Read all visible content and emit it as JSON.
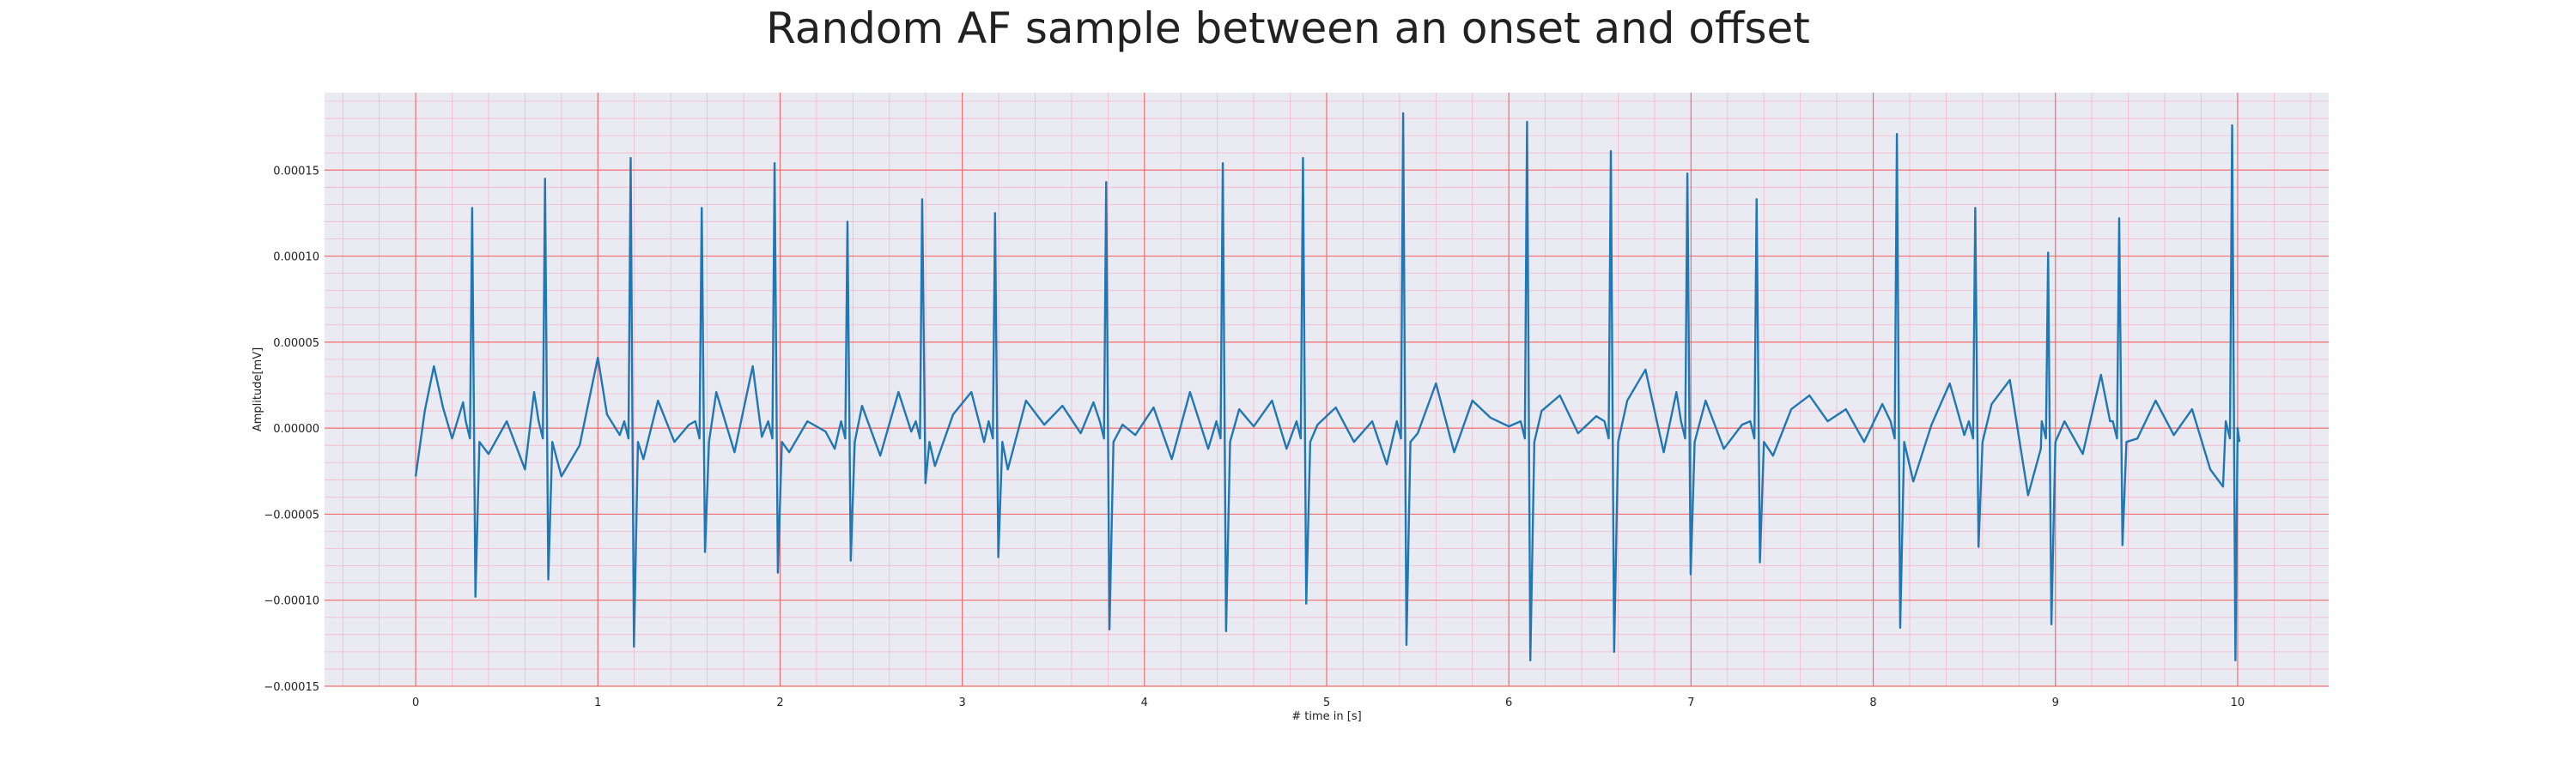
{
  "chart_data": {
    "type": "line",
    "title": "Random AF sample between an onset and offset",
    "xlabel": "# time in [s]",
    "ylabel": "Amplitude[mV]",
    "xlim": [
      -0.5,
      10.5
    ],
    "ylim": [
      -0.00015,
      0.000195
    ],
    "xticks": [
      0,
      1,
      2,
      3,
      4,
      5,
      6,
      7,
      8,
      9,
      10
    ],
    "xtick_labels": [
      "0",
      "1",
      "2",
      "3",
      "4",
      "5",
      "6",
      "7",
      "8",
      "9",
      "10"
    ],
    "yticks": [
      -0.00015,
      -0.0001,
      -5e-05,
      0,
      5e-05,
      0.0001,
      0.00015
    ],
    "ytick_labels": [
      "−0.00015",
      "−0.00010",
      "−0.00005",
      "0.00000",
      "0.00005",
      "0.00010",
      "0.00015"
    ],
    "grid": true,
    "minor_grid": true,
    "background_color": "#eaeaf2",
    "major_grid_color": "#f26d6d",
    "minor_grid_color": "#f5b8c8",
    "series": [
      {
        "color": "#1f77b4",
        "beats": [
          {
            "t": 0.31,
            "r": 0.000128,
            "s": -9.8e-05
          },
          {
            "t": 0.71,
            "r": 0.000145,
            "s": -8.8e-05
          },
          {
            "t": 1.18,
            "r": 0.000157,
            "s": -0.000127
          },
          {
            "t": 1.57,
            "r": 0.000128,
            "s": -7.2e-05
          },
          {
            "t": 1.97,
            "r": 0.000154,
            "s": -8.4e-05
          },
          {
            "t": 2.37,
            "r": 0.00012,
            "s": -7.7e-05
          },
          {
            "t": 2.78,
            "r": 0.000133,
            "s": -3.2e-05
          },
          {
            "t": 3.18,
            "r": 0.000125,
            "s": -7.5e-05
          },
          {
            "t": 3.79,
            "r": 0.000143,
            "s": -0.000117
          },
          {
            "t": 4.43,
            "r": 0.000154,
            "s": -0.000118
          },
          {
            "t": 4.87,
            "r": 0.000157,
            "s": -0.000102
          },
          {
            "t": 5.42,
            "r": 0.000183,
            "s": -0.000126
          },
          {
            "t": 6.1,
            "r": 0.000178,
            "s": -0.000135
          },
          {
            "t": 6.56,
            "r": 0.000161,
            "s": -0.00013
          },
          {
            "t": 6.98,
            "r": 0.000148,
            "s": -8.5e-05
          },
          {
            "t": 7.36,
            "r": 0.000133,
            "s": -7.8e-05
          },
          {
            "t": 8.13,
            "r": 0.000171,
            "s": -0.000116
          },
          {
            "t": 8.56,
            "r": 0.000128,
            "s": -6.9e-05
          },
          {
            "t": 8.96,
            "r": 0.000102,
            "s": -0.000114
          },
          {
            "t": 9.35,
            "r": 0.000122,
            "s": -6.8e-05
          },
          {
            "t": 9.97,
            "r": 0.000176,
            "s": -0.000135
          }
        ],
        "baseline": [
          [
            0.0,
            -2.8e-05
          ],
          [
            0.05,
            1e-05
          ],
          [
            0.1,
            3.6e-05
          ],
          [
            0.15,
            1.2e-05
          ],
          [
            0.2,
            -6e-06
          ],
          [
            0.26,
            1.5e-05
          ],
          [
            0.4,
            -1.5e-05
          ],
          [
            0.5,
            4e-06
          ],
          [
            0.6,
            -2.4e-05
          ],
          [
            0.65,
            2.1e-05
          ],
          [
            0.8,
            -2.8e-05
          ],
          [
            0.9,
            -1e-05
          ],
          [
            1.0,
            4.1e-05
          ],
          [
            1.05,
            8e-06
          ],
          [
            1.12,
            -4e-06
          ],
          [
            1.25,
            -1.8e-05
          ],
          [
            1.33,
            1.6e-05
          ],
          [
            1.42,
            -8e-06
          ],
          [
            1.5,
            2e-06
          ],
          [
            1.65,
            2.1e-05
          ],
          [
            1.75,
            -1.4e-05
          ],
          [
            1.85,
            3.6e-05
          ],
          [
            1.9,
            -5e-06
          ],
          [
            2.05,
            -1.4e-05
          ],
          [
            2.15,
            4e-06
          ],
          [
            2.25,
            -2e-06
          ],
          [
            2.3,
            -1.2e-05
          ],
          [
            2.45,
            1.3e-05
          ],
          [
            2.55,
            -1.6e-05
          ],
          [
            2.65,
            2.1e-05
          ],
          [
            2.72,
            -2e-06
          ],
          [
            2.85,
            -2.2e-05
          ],
          [
            2.95,
            8e-06
          ],
          [
            3.05,
            2.1e-05
          ],
          [
            3.12,
            -8e-06
          ],
          [
            3.25,
            -2.4e-05
          ],
          [
            3.35,
            1.6e-05
          ],
          [
            3.45,
            2e-06
          ],
          [
            3.55,
            1.3e-05
          ],
          [
            3.65,
            -3e-06
          ],
          [
            3.72,
            1.5e-05
          ],
          [
            3.88,
            2e-06
          ],
          [
            3.95,
            -4e-06
          ],
          [
            4.05,
            1.2e-05
          ],
          [
            4.15,
            -1.8e-05
          ],
          [
            4.25,
            2.1e-05
          ],
          [
            4.35,
            -1.2e-05
          ],
          [
            4.52,
            1.1e-05
          ],
          [
            4.6,
            1e-06
          ],
          [
            4.7,
            1.6e-05
          ],
          [
            4.78,
            -1.2e-05
          ],
          [
            4.95,
            2e-06
          ],
          [
            5.05,
            1.2e-05
          ],
          [
            5.15,
            -8e-06
          ],
          [
            5.25,
            4e-06
          ],
          [
            5.33,
            -2.1e-05
          ],
          [
            5.5,
            -3e-06
          ],
          [
            5.6,
            2.6e-05
          ],
          [
            5.7,
            -1.4e-05
          ],
          [
            5.8,
            1.6e-05
          ],
          [
            5.9,
            6e-06
          ],
          [
            6.0,
            1e-06
          ],
          [
            6.18,
            1e-05
          ],
          [
            6.28,
            1.9e-05
          ],
          [
            6.38,
            -3e-06
          ],
          [
            6.48,
            7e-06
          ],
          [
            6.65,
            1.6e-05
          ],
          [
            6.75,
            3.4e-05
          ],
          [
            6.85,
            -1.4e-05
          ],
          [
            6.92,
            2.1e-05
          ],
          [
            7.08,
            1.6e-05
          ],
          [
            7.18,
            -1.2e-05
          ],
          [
            7.28,
            2e-06
          ],
          [
            7.45,
            -1.6e-05
          ],
          [
            7.55,
            1.1e-05
          ],
          [
            7.65,
            1.9e-05
          ],
          [
            7.75,
            4e-06
          ],
          [
            7.85,
            1.1e-05
          ],
          [
            7.95,
            -8e-06
          ],
          [
            8.05,
            1.4e-05
          ],
          [
            8.22,
            -3.1e-05
          ],
          [
            8.32,
            2e-06
          ],
          [
            8.42,
            2.6e-05
          ],
          [
            8.5,
            -4e-06
          ],
          [
            8.65,
            1.4e-05
          ],
          [
            8.75,
            2.8e-05
          ],
          [
            8.85,
            -3.9e-05
          ],
          [
            8.92,
            -1.2e-05
          ],
          [
            9.05,
            4e-06
          ],
          [
            9.15,
            -1.5e-05
          ],
          [
            9.25,
            3.1e-05
          ],
          [
            9.3,
            4e-06
          ],
          [
            9.45,
            -6e-06
          ],
          [
            9.55,
            1.6e-05
          ],
          [
            9.65,
            -4e-06
          ],
          [
            9.75,
            1.1e-05
          ],
          [
            9.85,
            -2.4e-05
          ],
          [
            9.92,
            -3.4e-05
          ],
          [
            10.0,
            0.0
          ]
        ]
      }
    ]
  }
}
